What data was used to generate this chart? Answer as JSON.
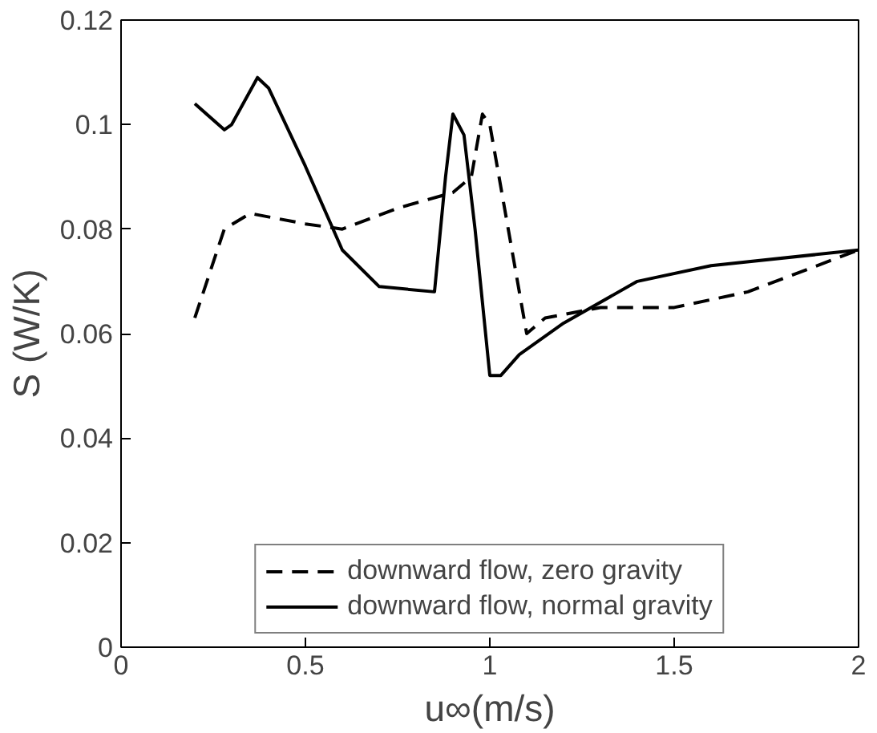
{
  "chart_data": {
    "type": "line",
    "xlabel": "u∞(m/s)",
    "ylabel": "S (W/K)",
    "xlim": [
      0,
      2
    ],
    "ylim": [
      0,
      0.12
    ],
    "xticks": [
      0,
      0.5,
      1,
      1.5,
      2
    ],
    "yticks": [
      0,
      0.02,
      0.04,
      0.06,
      0.08,
      0.1,
      0.12
    ],
    "grid": false,
    "legend": "bottom",
    "marker": "none",
    "series": [
      {
        "name": "downward flow, zero gravity",
        "color": "#000000",
        "line_style": "dashed",
        "x": [
          0.2,
          0.28,
          0.35,
          0.5,
          0.6,
          0.75,
          0.9,
          0.95,
          0.98,
          1.0,
          1.05,
          1.1,
          1.15,
          1.3,
          1.5,
          1.7,
          2.0
        ],
        "values": [
          0.063,
          0.08,
          0.083,
          0.081,
          0.08,
          0.084,
          0.087,
          0.09,
          0.102,
          0.1,
          0.08,
          0.06,
          0.063,
          0.065,
          0.065,
          0.068,
          0.076
        ]
      },
      {
        "name": "downward flow, normal gravity",
        "color": "#000000",
        "line_style": "solid",
        "x": [
          0.2,
          0.28,
          0.3,
          0.37,
          0.4,
          0.5,
          0.6,
          0.7,
          0.85,
          0.88,
          0.9,
          0.93,
          0.96,
          1.0,
          1.03,
          1.08,
          1.2,
          1.4,
          1.6,
          2.0
        ],
        "values": [
          0.104,
          0.099,
          0.1,
          0.109,
          0.107,
          0.092,
          0.076,
          0.069,
          0.068,
          0.09,
          0.102,
          0.098,
          0.08,
          0.052,
          0.052,
          0.056,
          0.062,
          0.07,
          0.073,
          0.076
        ]
      }
    ]
  }
}
